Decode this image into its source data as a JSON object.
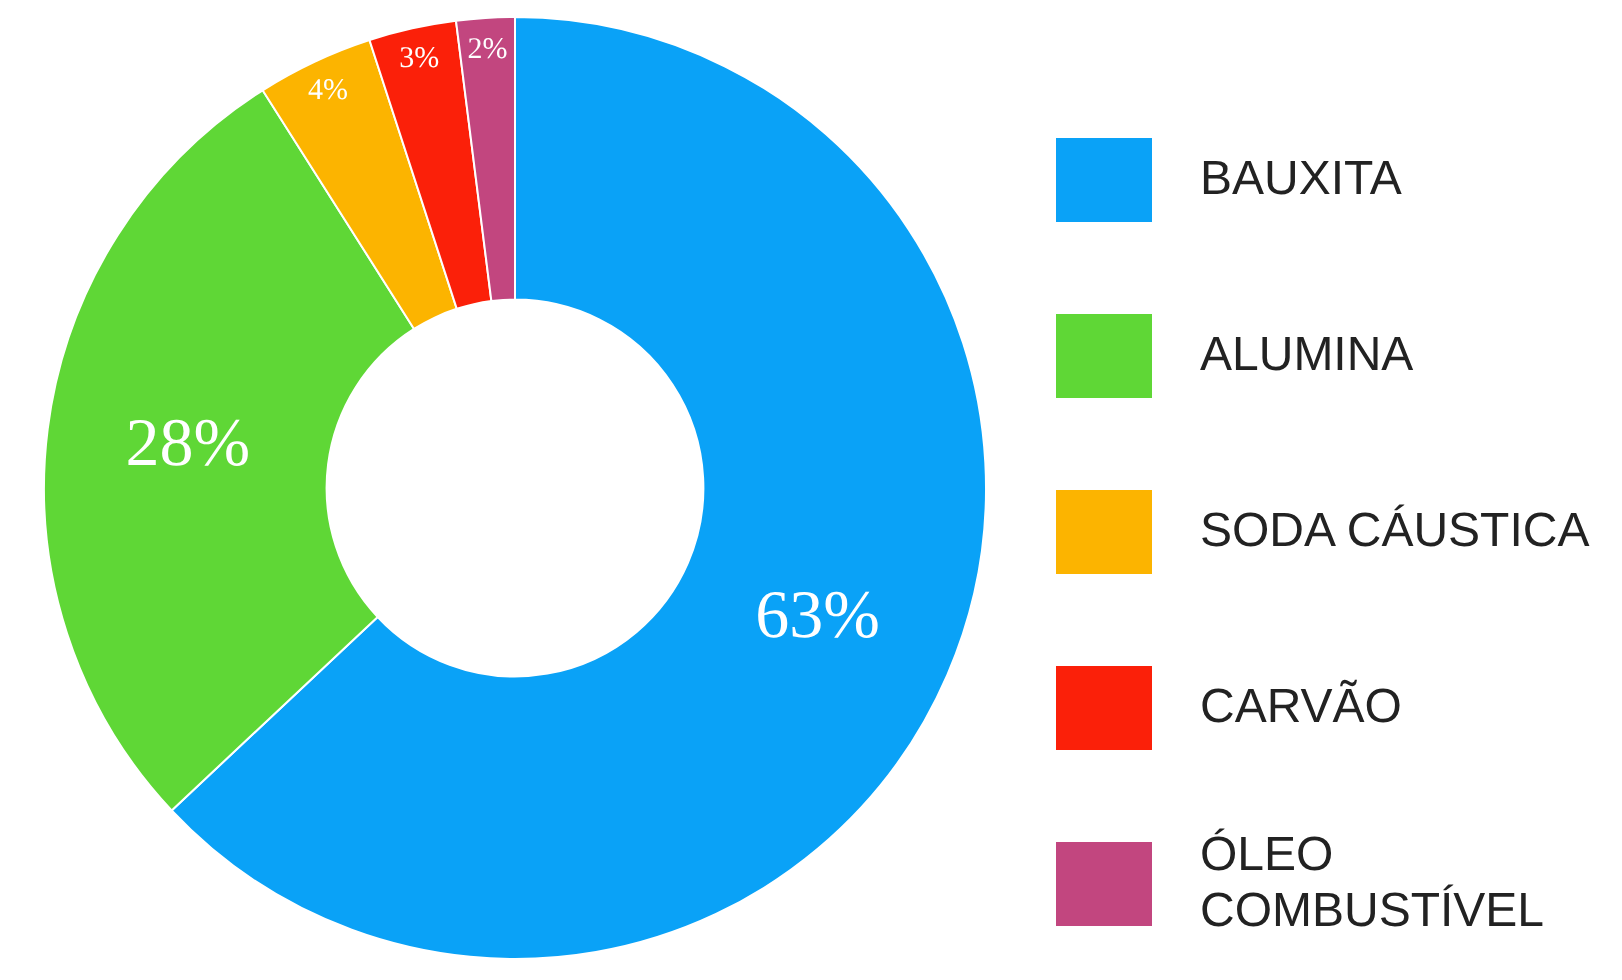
{
  "chart_data": {
    "type": "donut",
    "categories": [
      "BAUXITA",
      "ALUMINA",
      "SODA CÁUSTICA",
      "CARVÃO",
      "ÓLEO COMBUSTÍVEL"
    ],
    "values": [
      63,
      28,
      4,
      3,
      2
    ],
    "colors": [
      "#0aa2f7",
      "#5fd736",
      "#fcb400",
      "#fb2009",
      "#c2467f"
    ],
    "value_labels": [
      "63%",
      "28%",
      "4%",
      "3%",
      "2%"
    ],
    "legend": "right"
  }
}
